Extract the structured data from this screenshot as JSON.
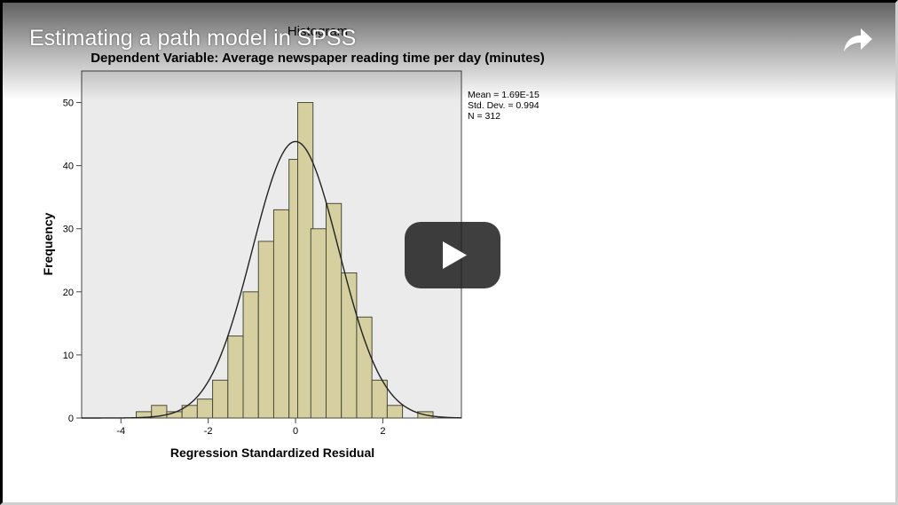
{
  "video": {
    "title": "Estimating a path model in SPSS",
    "share_icon": "share-arrow-icon",
    "play_icon": "play-icon",
    "play_button_color": "#1f1f1f"
  },
  "chart_data": {
    "type": "bar",
    "title": "Histogram",
    "subtitle": "Dependent Variable: Average newspaper reading time per day (minutes)",
    "xlabel": "Regression Standardized Residual",
    "ylabel": "Frequency",
    "xlim": [
      -4.9,
      3.8
    ],
    "ylim": [
      0,
      55
    ],
    "x_ticks": [
      -4,
      -2,
      0,
      2
    ],
    "x_tick_labels": [
      "-4",
      "-2",
      "0",
      "2"
    ],
    "y_ticks": [
      0,
      10,
      20,
      30,
      40,
      50
    ],
    "y_tick_labels": [
      "0",
      "10",
      "20",
      "30",
      "40",
      "50"
    ],
    "bin_width": 0.35,
    "bins": [
      {
        "x0": -3.65,
        "value": 1
      },
      {
        "x0": -3.3,
        "value": 2
      },
      {
        "x0": -2.95,
        "value": 1
      },
      {
        "x0": -2.6,
        "value": 2
      },
      {
        "x0": -2.25,
        "value": 3
      },
      {
        "x0": -1.9,
        "value": 6
      },
      {
        "x0": -1.55,
        "value": 13
      },
      {
        "x0": -1.2,
        "value": 20
      },
      {
        "x0": -0.85,
        "value": 28
      },
      {
        "x0": -0.5,
        "value": 33
      },
      {
        "x0": -0.15,
        "value": 41
      },
      {
        "x0": 0.05,
        "value": 50
      },
      {
        "x0": 0.35,
        "value": 30
      },
      {
        "x0": 0.7,
        "value": 34
      },
      {
        "x0": 1.05,
        "value": 23
      },
      {
        "x0": 1.4,
        "value": 16
      },
      {
        "x0": 1.75,
        "value": 6
      },
      {
        "x0": 2.1,
        "value": 2
      },
      {
        "x0": 2.8,
        "value": 1
      }
    ],
    "normal_curve": {
      "mean": 0.0,
      "sd": 0.994,
      "n": 312
    },
    "stats_lines": [
      "Mean = 1.69E-15",
      "Std. Dev. = 0.994",
      "N = 312"
    ],
    "bar_color": "#d6d0a0",
    "bar_edge_color": "#4a4a3a",
    "plot_bg_color": "#ebebeb",
    "grid": false,
    "legend": "top-right"
  }
}
